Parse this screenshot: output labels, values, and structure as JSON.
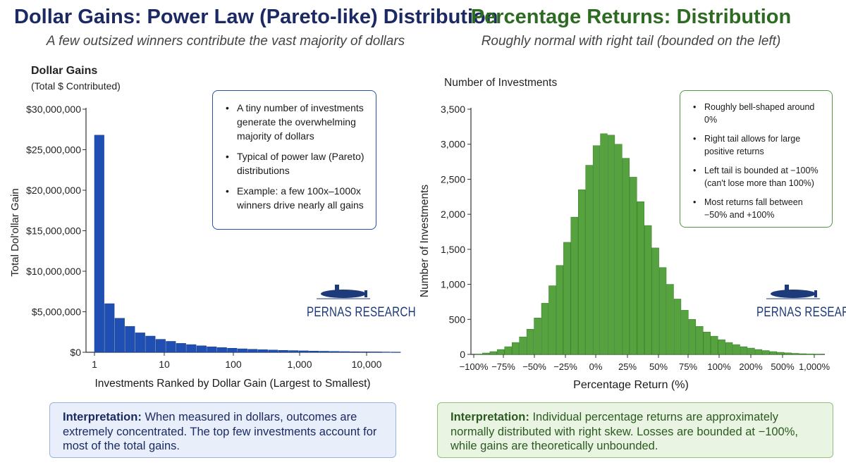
{
  "left": {
    "title": "Dollar Gains: Power Law (Pareto-like) Distribution",
    "subtitle": "A few outsized winners contribute the vast majority of dollars",
    "ylabel_top_line1": "Dollar Gains",
    "ylabel_top_line2": "(Total $ Contributed)",
    "ylabel": "Total Dol'ollar Gain",
    "xlabel": "Investments Ranked by Dollar Gain (Largest to Smallest)",
    "notes": [
      "A tiny number of investments generate the overwhelming majority of dollars",
      "Typical of power law (Pareto) distributions",
      "Example: a few 100x–1000x winners drive nearly all gains"
    ],
    "interp_label": "Interpretation:",
    "interp_text": "When measured in dollars, outcomes are extremely concentrated. The top few investments account for most of the total gains.",
    "brand": "PERNAS RESEARCH",
    "title_color": "#1b2a63",
    "bar_color": "#1f4fb2"
  },
  "right": {
    "title": "Percentage Returns: Distribution",
    "subtitle": "Roughly normal with right tail (bounded on the left)",
    "ylabel_top": "Number of Investments",
    "ylabel": "Number of Investments",
    "xlabel": "Percentage Return (%)",
    "notes": [
      "Roughly bell-shaped around 0%",
      "Right tail allows for large positive returns",
      "Left tail is bounded at −100% (can't lose more than 100%)",
      "Most returns fall between −50% and +100%"
    ],
    "interp_label": "Interpretation:",
    "interp_text": "Individual percentage returns are approximately normally distributed with right skew. Losses are bounded at −100%, while gains are theoretically unbounded.",
    "brand": "PERNAS RESEARCH",
    "title_color": "#2e6b22",
    "bar_color": "#56a23f"
  },
  "chart_data": [
    {
      "type": "bar",
      "title": "Dollar Gains: Power Law (Pareto-like) Distribution",
      "xlabel": "Investments Ranked by Dollar Gain (Largest to Smallest)",
      "ylabel": "Total Dol'ollar Gain",
      "x_scale": "log",
      "x_ticks": [
        "1",
        "10",
        "100",
        "1,000",
        "10,000"
      ],
      "y_ticks": [
        "$0",
        "$5,000,000",
        "$10,000,000",
        "$15,000,000",
        "$20,000,000",
        "$25,000,000",
        "$30,000,000"
      ],
      "ylim": [
        0,
        30000000
      ],
      "values": [
        26800000,
        6000000,
        4200000,
        3200000,
        2400000,
        2000000,
        1600000,
        1350000,
        1100000,
        950000,
        800000,
        680000,
        580000,
        500000,
        430000,
        370000,
        320000,
        280000,
        240000,
        210000,
        180000,
        150000,
        130000,
        110000,
        90000,
        70000,
        60000,
        50000,
        40000,
        30000
      ]
    },
    {
      "type": "bar",
      "title": "Percentage Returns: Distribution",
      "xlabel": "Percentage Return (%)",
      "ylabel": "Number of Investments",
      "x_ticks": [
        "−100%",
        "−75%",
        "−50%",
        "−25%",
        "0%",
        "25%",
        "50%",
        "75%",
        "100%",
        "200%",
        "500%",
        "1,000%"
      ],
      "y_ticks": [
        "0",
        "500",
        "1,000",
        "1,500",
        "2,000",
        "2,500",
        "3,000",
        "3,500"
      ],
      "ylim": [
        0,
        3500
      ],
      "values": [
        5,
        20,
        40,
        70,
        110,
        170,
        250,
        360,
        520,
        730,
        980,
        1270,
        1600,
        1960,
        2350,
        2700,
        2980,
        3150,
        3130,
        3000,
        2800,
        2530,
        2180,
        1840,
        1520,
        1240,
        1000,
        790,
        630,
        500,
        400,
        320,
        260,
        210,
        170,
        140,
        110,
        90,
        70,
        55,
        40,
        30,
        22,
        15,
        10,
        6,
        3
      ]
    }
  ]
}
